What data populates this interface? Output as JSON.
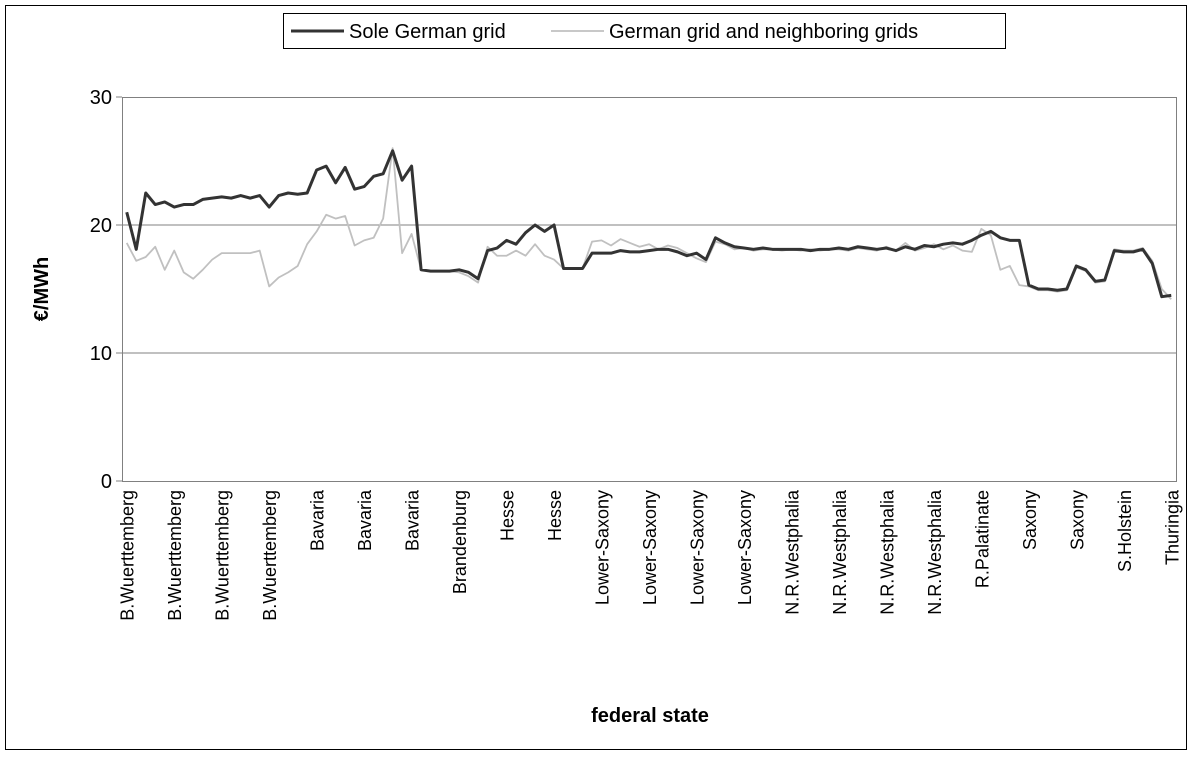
{
  "chart_data": {
    "type": "line",
    "xlabel": "federal state",
    "ylabel": "€/MWh",
    "ylim": [
      0,
      30
    ],
    "yticks": [
      0,
      10,
      20,
      30
    ],
    "grid": true,
    "legend": "top",
    "categories": [
      "B.Wuerttemberg",
      null,
      null,
      null,
      null,
      "B.Wuerttemberg",
      null,
      null,
      null,
      null,
      "B.Wuerttemberg",
      null,
      null,
      null,
      null,
      "B.Wuerttemberg",
      null,
      null,
      null,
      null,
      "Bavaria",
      null,
      null,
      null,
      null,
      "Bavaria",
      null,
      null,
      null,
      null,
      "Bavaria",
      null,
      null,
      null,
      null,
      "Brandenburg",
      null,
      null,
      null,
      null,
      "Hesse",
      null,
      null,
      null,
      null,
      "Hesse",
      null,
      null,
      null,
      null,
      "Lower-Saxony",
      null,
      null,
      null,
      null,
      "Lower-Saxony",
      null,
      null,
      null,
      null,
      "Lower-Saxony",
      null,
      null,
      null,
      null,
      "Lower-Saxony",
      null,
      null,
      null,
      null,
      "N.R.Westphalia",
      null,
      null,
      null,
      null,
      "N.R.Westphalia",
      null,
      null,
      null,
      null,
      "N.R.Westphalia",
      null,
      null,
      null,
      null,
      "N.R.Westphalia",
      null,
      null,
      null,
      null,
      "R.Palatinate",
      null,
      null,
      null,
      null,
      "Saxony",
      null,
      null,
      null,
      null,
      "Saxony",
      null,
      null,
      null,
      null,
      "S.Holstein",
      null,
      null,
      null,
      null,
      "Thuringia"
    ],
    "series": [
      {
        "name": "Sole German grid",
        "color": "#333333",
        "values": [
          21,
          18.1,
          22.5,
          21.6,
          21.8,
          21.4,
          21.6,
          21.6,
          22,
          22.1,
          22.2,
          22.1,
          22.3,
          22.1,
          22.3,
          21.4,
          22.3,
          22.5,
          22.4,
          22.5,
          24.3,
          24.6,
          23.3,
          24.5,
          22.8,
          23,
          23.8,
          24,
          25.8,
          23.5,
          24.6,
          16.5,
          16.4,
          16.4,
          16.4,
          16.5,
          16.3,
          15.8,
          18,
          18.2,
          18.8,
          18.5,
          19.4,
          20,
          19.5,
          20,
          16.6,
          16.6,
          16.6,
          17.8,
          17.8,
          17.8,
          18,
          17.9,
          17.9,
          18,
          18.1,
          18.1,
          17.9,
          17.6,
          17.8,
          17.3,
          19,
          18.6,
          18.3,
          18.2,
          18.1,
          18.2,
          18.1,
          18.1,
          18.1,
          18.1,
          18,
          18.1,
          18.1,
          18.2,
          18.1,
          18.3,
          18.2,
          18.1,
          18.2,
          18,
          18.3,
          18.1,
          18.4,
          18.3,
          18.5,
          18.6,
          18.5,
          18.8,
          19.2,
          19.5,
          19,
          18.8,
          18.8,
          15.3,
          15,
          15,
          14.9,
          15,
          16.8,
          16.5,
          15.6,
          15.7,
          18,
          17.9,
          17.9,
          18.1,
          17,
          14.4,
          14.5
        ]
      },
      {
        "name": "German grid and neighboring grids",
        "color": "#c0c0c0",
        "values": [
          18.6,
          17.2,
          17.5,
          18.3,
          16.5,
          18,
          16.3,
          15.8,
          16.5,
          17.3,
          17.8,
          17.8,
          17.8,
          17.8,
          18,
          15.2,
          15.9,
          16.3,
          16.8,
          18.5,
          19.5,
          20.8,
          20.5,
          20.7,
          18.4,
          18.8,
          19,
          20.5,
          26,
          17.8,
          19.3,
          16.5,
          16.4,
          16.4,
          16.4,
          16.3,
          16,
          15.5,
          18.3,
          17.6,
          17.6,
          18,
          17.6,
          18.5,
          17.6,
          17.3,
          16.6,
          16.6,
          16.6,
          18.7,
          18.8,
          18.4,
          18.9,
          18.6,
          18.3,
          18.5,
          18.1,
          18.4,
          18.2,
          17.8,
          17.4,
          17.1,
          18.7,
          18.5,
          18.1,
          18.2,
          18,
          18.1,
          18.1,
          18,
          18.1,
          18,
          18.1,
          18,
          18.1,
          18.1,
          18,
          18.2,
          18.1,
          18,
          18.3,
          18,
          18.6,
          18,
          18.2,
          18.5,
          18.1,
          18.4,
          18,
          17.9,
          19.7,
          19.2,
          16.5,
          16.8,
          15.3,
          15.2,
          14.9,
          14.9,
          14.8,
          14.9,
          16.7,
          16.4,
          15.5,
          15.6,
          18.1,
          18,
          18,
          18.2,
          17.2,
          15,
          14.2
        ]
      }
    ]
  }
}
